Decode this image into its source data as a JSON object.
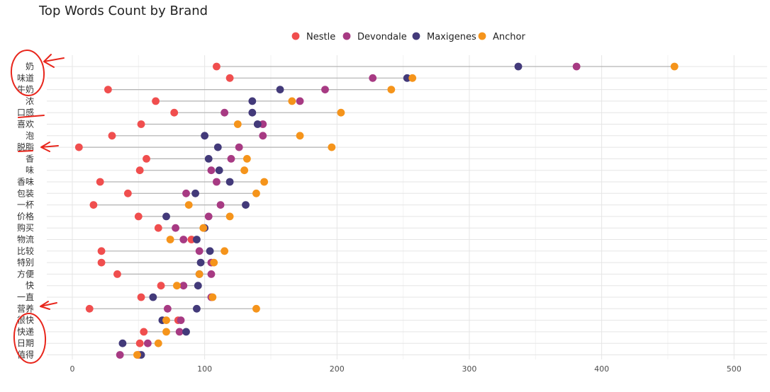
{
  "chart_data": {
    "type": "dot-plot",
    "title": "Top Words Count by Brand",
    "xlabel": "",
    "ylabel": "",
    "xlim": [
      -20,
      520
    ],
    "xticks": [
      0,
      100,
      200,
      300,
      400,
      500
    ],
    "grid": true,
    "legend_position": "top",
    "categories": [
      "奶",
      "味道",
      "牛奶",
      "浓",
      "口感",
      "喜欢",
      "泡",
      "脱脂",
      "香",
      "味",
      "香味",
      "包装",
      "一杯",
      "价格",
      "购买",
      "物流",
      "比较",
      "特别",
      "方便",
      "快",
      "一直",
      "营养",
      "很快",
      "快递",
      "日期",
      "值得"
    ],
    "series": [
      {
        "name": "Nestle",
        "color": "#f04e4e",
        "values": [
          109,
          119,
          27,
          63,
          77,
          52,
          30,
          5,
          56,
          51,
          21,
          42,
          16,
          50,
          65,
          90,
          22,
          22,
          34,
          67,
          52,
          13,
          80,
          54,
          51,
          50
        ]
      },
      {
        "name": "Devondale",
        "color": "#a73a83",
        "values": [
          381,
          227,
          191,
          172,
          115,
          144,
          144,
          126,
          120,
          105,
          109,
          86,
          112,
          103,
          78,
          84,
          96,
          105,
          105,
          84,
          105,
          72,
          82,
          81,
          57,
          36
        ]
      },
      {
        "name": "Maxigenes",
        "color": "#433a7a",
        "values": [
          337,
          253,
          157,
          136,
          136,
          140,
          100,
          110,
          103,
          111,
          119,
          93,
          131,
          71,
          100,
          94,
          104,
          97,
          96,
          95,
          61,
          94,
          68,
          86,
          38,
          52
        ]
      },
      {
        "name": "Anchor",
        "color": "#f5941b",
        "values": [
          455,
          257,
          241,
          166,
          203,
          125,
          172,
          196,
          132,
          130,
          145,
          139,
          88,
          119,
          99,
          74,
          115,
          107,
          96,
          79,
          106,
          139,
          71,
          71,
          65,
          49
        ]
      }
    ]
  }
}
